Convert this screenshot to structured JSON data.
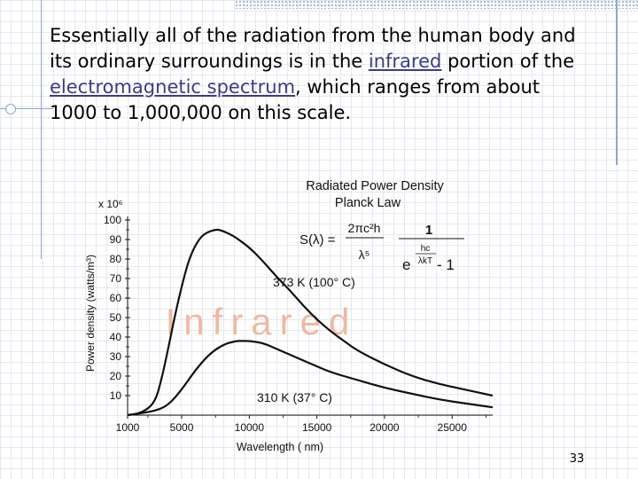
{
  "slide": {
    "text_before_link1": "Essentially all of the radiation from the human body and its ordinary surroundings is in the ",
    "link1": "infrared",
    "text_between": " portion of the ",
    "link2": "electromagnetic spectrum",
    "text_after": ", which ranges from about 1000 to 1,000,000 on this scale.",
    "page_number": "33"
  },
  "chart_data": {
    "type": "line",
    "title": "Radiated Power Density",
    "subtitle": "Planck Law",
    "formula": {
      "lhs": "S(λ) =",
      "num1": "2πc²h",
      "den1": "λ⁵",
      "num2": "1",
      "den2_base": "e",
      "den2_exp_num": "hc",
      "den2_exp_den": "λkT",
      "den2_tail": " - 1"
    },
    "ylabel": "Power density (watts/m³)",
    "yscale_label": "x 10⁶",
    "xlabel": "Wavelength ( nm)",
    "region_label": "Infrared",
    "xlim": [
      1000,
      28000
    ],
    "ylim": [
      0,
      100
    ],
    "xticks": [
      1000,
      5000,
      10000,
      15000,
      20000,
      25000
    ],
    "yticks": [
      10,
      20,
      30,
      40,
      50,
      60,
      70,
      80,
      90,
      100
    ],
    "series": [
      {
        "name": "373 K (100° C)",
        "x": [
          1000,
          2000,
          3000,
          3500,
          4000,
          4500,
          5000,
          5500,
          6000,
          6500,
          7000,
          7500,
          7800,
          8500,
          9000,
          10000,
          11000,
          12000,
          13000,
          14000,
          15000,
          16000,
          17000,
          18000,
          20000,
          22000,
          24000,
          26000,
          28000
        ],
        "y": [
          0,
          1,
          6,
          18,
          34,
          51,
          66,
          79,
          87,
          92,
          94,
          95,
          95,
          93,
          91,
          86,
          79,
          71,
          64,
          56,
          49,
          43,
          38,
          33,
          26,
          20,
          16,
          13,
          10
        ]
      },
      {
        "name": "310 K (37° C)",
        "x": [
          1000,
          3000,
          4000,
          5000,
          6000,
          7000,
          8000,
          9000,
          9500,
          10000,
          11000,
          12000,
          13000,
          14000,
          15000,
          16000,
          18000,
          20000,
          22000,
          24000,
          26000,
          28000
        ],
        "y": [
          0,
          2,
          5,
          13,
          23,
          31,
          36,
          38,
          38,
          38,
          37,
          34,
          31,
          28,
          25,
          22,
          18,
          14,
          11,
          8,
          6,
          4
        ]
      }
    ]
  }
}
